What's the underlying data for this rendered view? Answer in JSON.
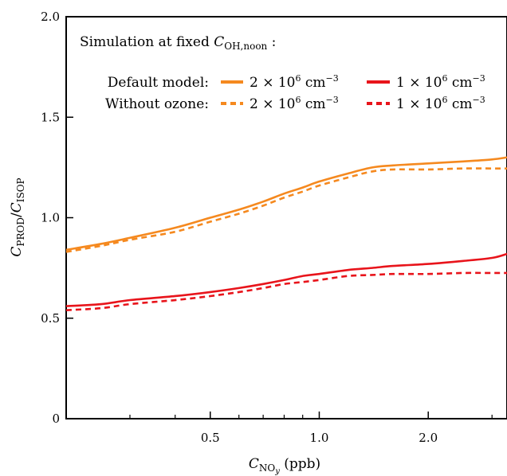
{
  "chart_data": {
    "type": "line",
    "xlabel": {
      "main": "C",
      "sub": "NO",
      "subsub": "y",
      "suffix": " (ppb)"
    },
    "ylabel": {
      "main1": "C",
      "sub1": "PROD",
      "slash": "/",
      "main2": "C",
      "sub2": "ISOP"
    },
    "x_scale": "log",
    "xlim": [
      0.2,
      3.3
    ],
    "ylim": [
      0,
      2.0
    ],
    "y_ticks": [
      0,
      0.5,
      1.0,
      1.5,
      2.0
    ],
    "y_tick_labels": [
      "0",
      "0.5",
      "1.0",
      "1.5",
      "2.0"
    ],
    "x_ticks_labeled": [
      0.5,
      1.0,
      2.0
    ],
    "x_tick_labels": [
      "0.5",
      "1.0",
      "2.0"
    ],
    "x_minor_ticks": [
      0.3,
      0.4,
      0.6,
      0.7,
      0.8,
      0.9,
      3.0
    ],
    "legend": {
      "title_prefix": "Simulation at fixed ",
      "title_var": "C",
      "title_sub": "OH,noon",
      "title_suffix": " :",
      "row_labels": [
        "Default model:",
        "Without ozone:"
      ],
      "column_labels": [
        "2 × 10",
        "1 × 10"
      ],
      "exponent": "6",
      "unit": " cm",
      "unit_exponent": "−3",
      "placement": "top-left"
    },
    "series": [
      {
        "color": "#F5891F",
        "dash": "solid",
        "x": [
          0.2,
          0.25,
          0.3,
          0.4,
          0.5,
          0.6,
          0.7,
          0.8,
          0.9,
          1.0,
          1.2,
          1.4,
          1.6,
          2.0,
          2.5,
          3.0,
          3.3
        ],
        "y": [
          0.84,
          0.87,
          0.9,
          0.95,
          1.0,
          1.04,
          1.08,
          1.12,
          1.15,
          1.18,
          1.22,
          1.25,
          1.26,
          1.27,
          1.28,
          1.29,
          1.3
        ]
      },
      {
        "color": "#F5891F",
        "dash": "dashed",
        "x": [
          0.2,
          0.25,
          0.3,
          0.4,
          0.5,
          0.6,
          0.7,
          0.8,
          0.9,
          1.0,
          1.2,
          1.4,
          1.6,
          2.0,
          2.5,
          3.0,
          3.3
        ],
        "y": [
          0.83,
          0.86,
          0.89,
          0.93,
          0.98,
          1.02,
          1.06,
          1.1,
          1.13,
          1.16,
          1.2,
          1.23,
          1.24,
          1.24,
          1.245,
          1.245,
          1.245
        ]
      },
      {
        "color": "#E8141B",
        "dash": "solid",
        "x": [
          0.2,
          0.25,
          0.3,
          0.4,
          0.5,
          0.6,
          0.7,
          0.8,
          0.9,
          1.0,
          1.2,
          1.4,
          1.6,
          2.0,
          2.5,
          3.0,
          3.3
        ],
        "y": [
          0.56,
          0.57,
          0.59,
          0.61,
          0.63,
          0.65,
          0.67,
          0.69,
          0.71,
          0.72,
          0.74,
          0.75,
          0.76,
          0.77,
          0.785,
          0.8,
          0.82
        ]
      },
      {
        "color": "#E8141B",
        "dash": "dashed",
        "x": [
          0.2,
          0.25,
          0.3,
          0.4,
          0.5,
          0.6,
          0.7,
          0.8,
          0.9,
          1.0,
          1.2,
          1.4,
          1.6,
          2.0,
          2.5,
          3.0,
          3.3
        ],
        "y": [
          0.54,
          0.55,
          0.57,
          0.59,
          0.61,
          0.63,
          0.65,
          0.67,
          0.68,
          0.69,
          0.71,
          0.715,
          0.72,
          0.72,
          0.725,
          0.725,
          0.725
        ]
      }
    ]
  }
}
